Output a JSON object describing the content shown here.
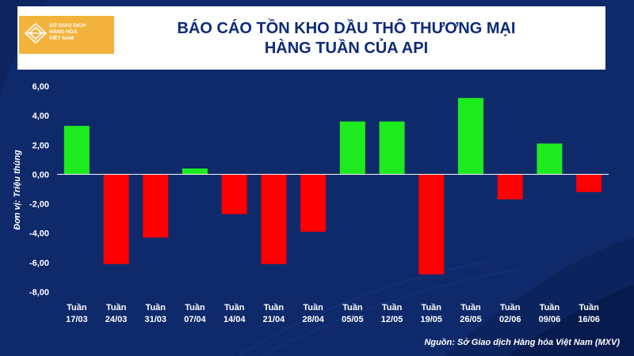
{
  "colors": {
    "background": "#0f2a6b",
    "positive": "#1eeb1e",
    "negative": "#ff0000",
    "title": "#0d2a78",
    "logo": "#f2b33d"
  },
  "logo": {
    "line1": "SỞ GIAO DỊCH",
    "line2": "HÀNG HÓA",
    "line3": "VIỆT NAM"
  },
  "header": {
    "title_line1": "BÁO CÁO TỒN KHO DẦU THÔ THƯƠNG MẠI",
    "title_line2": "HÀNG TUẦN CỦA API"
  },
  "source": "Nguồn: Sở Giao dịch Hàng hóa Việt Nam (MXV)",
  "chart_data": {
    "type": "bar",
    "title": "BÁO CÁO TỒN KHO DẦU THÔ THƯƠNG MẠI HÀNG TUẦN CỦA API",
    "ylabel": "Đơn vị: Triệu thùng",
    "xlabel": "",
    "ylim": [
      -8,
      6
    ],
    "yticks": [
      6,
      4,
      2,
      0,
      -2,
      -4,
      -6,
      -8
    ],
    "ytick_labels": [
      "6,00",
      "4,00",
      "2,00",
      "0,00",
      "-2,00",
      "-4,00",
      "-6,00",
      "-8,00"
    ],
    "grid": false,
    "categories": [
      [
        "Tuần",
        "17/03"
      ],
      [
        "Tuần",
        "24/03"
      ],
      [
        "Tuần",
        "31/03"
      ],
      [
        "Tuần",
        "07/04"
      ],
      [
        "Tuần",
        "14/04"
      ],
      [
        "Tuần",
        "21/04"
      ],
      [
        "Tuần",
        "28/04"
      ],
      [
        "Tuần",
        "05/05"
      ],
      [
        "Tuần",
        "12/05"
      ],
      [
        "Tuần",
        "19/05"
      ],
      [
        "Tuần",
        "26/05"
      ],
      [
        "Tuần",
        "02/06"
      ],
      [
        "Tuần",
        "09/06"
      ],
      [
        "Tuần",
        "16/06"
      ]
    ],
    "values": [
      3.3,
      -6.1,
      -4.3,
      0.4,
      -2.7,
      -6.1,
      -3.9,
      3.6,
      3.6,
      -6.8,
      5.2,
      -1.7,
      2.1,
      -1.2
    ]
  }
}
